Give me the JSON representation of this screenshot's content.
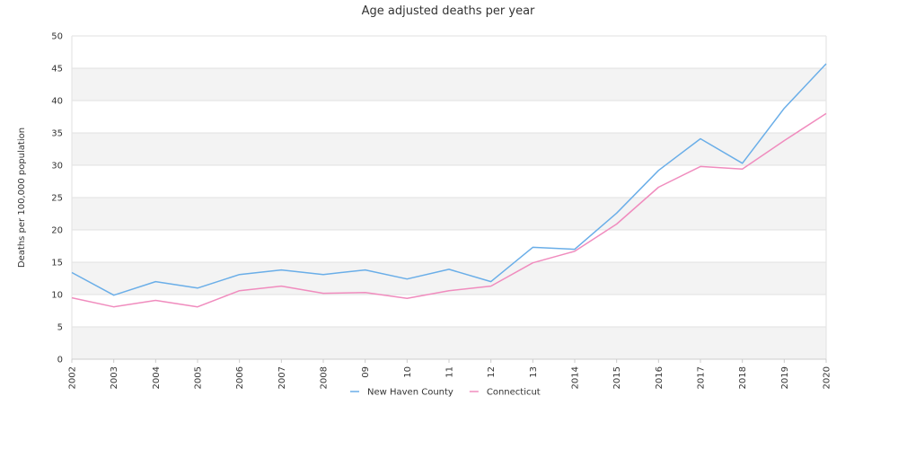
{
  "chart_data": {
    "type": "line",
    "title": "Age adjusted deaths per year",
    "xlabel": "",
    "ylabel": "Deaths per 100,000 population",
    "categories": [
      "2002",
      "2003",
      "2004",
      "2005",
      "2006",
      "2007",
      "2008",
      "09",
      "10",
      "11",
      "12",
      "13",
      "2014",
      "2015",
      "2016",
      "2017",
      "2018",
      "2019",
      "2020"
    ],
    "ylim": [
      0,
      50
    ],
    "yticks": [
      0,
      5,
      10,
      15,
      20,
      25,
      30,
      35,
      40,
      45,
      50
    ],
    "grid": "horizontal alternating bands",
    "legend_position": "bottom",
    "series": [
      {
        "name": "New Haven County",
        "color": "#6aaee8",
        "values": [
          13.4,
          9.9,
          12.0,
          11.0,
          13.1,
          13.8,
          13.1,
          13.8,
          12.4,
          13.9,
          12.0,
          17.3,
          17.0,
          22.6,
          29.2,
          34.1,
          30.3,
          38.8,
          45.7
        ]
      },
      {
        "name": "Connecticut",
        "color": "#f08cbe",
        "values": [
          9.5,
          8.1,
          9.1,
          8.1,
          10.6,
          11.3,
          10.2,
          10.3,
          9.4,
          10.6,
          11.3,
          14.9,
          16.7,
          20.9,
          26.6,
          29.8,
          29.4,
          33.8,
          38.0
        ]
      }
    ]
  }
}
